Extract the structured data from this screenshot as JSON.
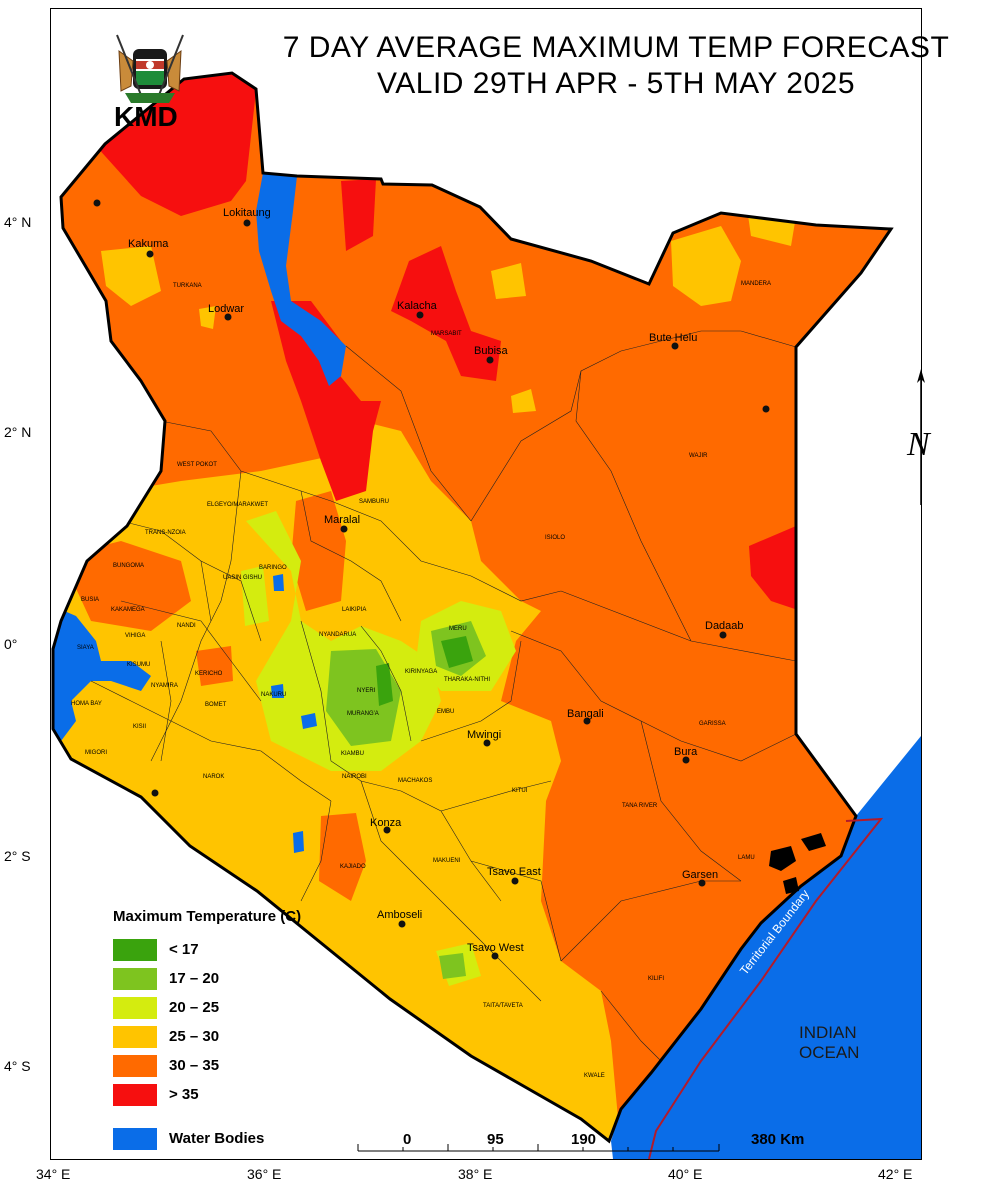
{
  "title": {
    "line1": "7 DAY AVERAGE MAXIMUM TEMP FORECAST",
    "line2": "VALID 29TH APR - 5TH MAY  2025"
  },
  "logo": {
    "text": "KMD",
    "icon": "kenya-coat-of-arms-icon"
  },
  "axes": {
    "lat_labels": [
      "4° N",
      "2° N",
      "0°",
      "2° S",
      "4° S"
    ],
    "lon_labels": [
      "34° E",
      "36° E",
      "38° E",
      "40° E",
      "42° E"
    ]
  },
  "legend": {
    "title": "Maximum Temperature (C)",
    "items": [
      {
        "label": "< 17",
        "color": "#3aa30d"
      },
      {
        "label": "17 – 20",
        "color": "#7ec41f"
      },
      {
        "label": "20 – 25",
        "color": "#d4ec0f"
      },
      {
        "label": "25 – 30",
        "color": "#ffc400"
      },
      {
        "label": "30 – 35",
        "color": "#ff6a00"
      },
      {
        "label": "> 35",
        "color": "#f60f0f"
      },
      {
        "label": "Water Bodies",
        "color": "#0a6de8"
      }
    ]
  },
  "scale_bar": {
    "labels": [
      "0",
      "95",
      "190",
      "380 Km"
    ]
  },
  "towns": [
    "Lokitaung",
    "Kakuma",
    "Lodwar",
    "Kalacha",
    "Bubisa",
    "Bute Helu",
    "Maralal",
    "Dadaab",
    "Bangali",
    "Mwingi",
    "Bura",
    "Konza",
    "Tsavo East",
    "Garsen",
    "Amboseli",
    "Tsavo West"
  ],
  "counties": [
    "TURKANA",
    "MARSABIT",
    "MANDERA",
    "WAJIR",
    "WEST POKOT",
    "SAMBURU",
    "ISIOLO",
    "TRANS-NZOIA",
    "ELGEYO/MARAKWET",
    "BARINGO",
    "BUNGOMA",
    "UASIN GISHU",
    "BUSIA",
    "KAKAMEGA",
    "LAIKIPIA",
    "MERU",
    "SIAYA",
    "VIHIGA",
    "NANDI",
    "THARAKA-NITHI",
    "KISUMU",
    "NYANDARUA",
    "KERICHO",
    "NAKURU",
    "NYERI",
    "KIRINYAGA",
    "EMBU",
    "HOMA BAY",
    "NYAMIRA",
    "BOMET",
    "MURANG'A",
    "GARISSA",
    "KISII",
    "MIGORI",
    "KIAMBU",
    "NAROK",
    "NAIROBI",
    "MACHAKOS",
    "KITUI",
    "TANA RIVER",
    "LAMU",
    "KAJIADO",
    "MAKUENI",
    "KILIFI",
    "TAITA/TAVETA",
    "KWALE"
  ],
  "labels": {
    "ocean": "INDIAN OCEAN",
    "territorial": "Territorial Boundary",
    "north_arrow": "north-arrow-icon"
  }
}
